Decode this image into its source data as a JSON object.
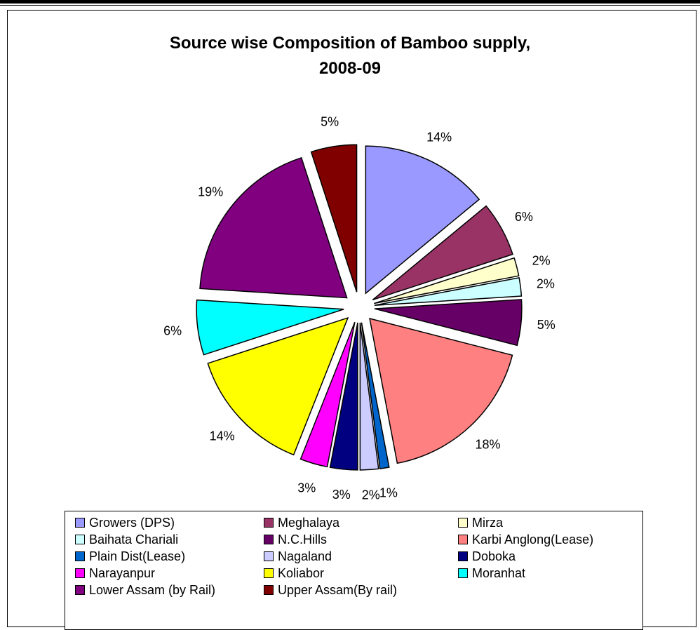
{
  "chart_data": {
    "type": "pie",
    "title": "Source wise Composition of Bamboo supply, 2008-09",
    "title_lines": [
      "Source wise Composition of Bamboo supply,",
      "2008-09"
    ],
    "exploded": true,
    "legend_position": "bottom",
    "slices": [
      {
        "name": "Growers (DPS)",
        "value": 14,
        "label": "14%",
        "color": "#9999ff"
      },
      {
        "name": "Meghalaya",
        "value": 6,
        "label": "6%",
        "color": "#993366"
      },
      {
        "name": "Mirza",
        "value": 2,
        "label": "2%",
        "color": "#ffffcc"
      },
      {
        "name": "Baihata Chariali",
        "value": 2,
        "label": "2%",
        "color": "#ccffff"
      },
      {
        "name": "N.C.Hills",
        "value": 5,
        "label": "5%",
        "color": "#660066"
      },
      {
        "name": "Karbi Anglong(Lease)",
        "value": 18,
        "label": "18%",
        "color": "#ff8080"
      },
      {
        "name": "Plain Dist(Lease)",
        "value": 1,
        "label": "1%",
        "color": "#0066cc"
      },
      {
        "name": "Nagaland",
        "value": 2,
        "label": "2%",
        "color": "#ccccff"
      },
      {
        "name": "Doboka",
        "value": 3,
        "label": "3%",
        "color": "#000080"
      },
      {
        "name": "Narayanpur",
        "value": 3,
        "label": "3%",
        "color": "#ff00ff"
      },
      {
        "name": "Koliabor",
        "value": 14,
        "label": "14%",
        "color": "#ffff00"
      },
      {
        "name": "Moranhat",
        "value": 6,
        "label": "6%",
        "color": "#00ffff"
      },
      {
        "name": "Lower Assam (by Rail)",
        "value": 19,
        "label": "19%",
        "color": "#800080"
      },
      {
        "name": "Upper Assam(By rail)",
        "value": 5,
        "label": "5%",
        "color": "#800000"
      }
    ]
  }
}
